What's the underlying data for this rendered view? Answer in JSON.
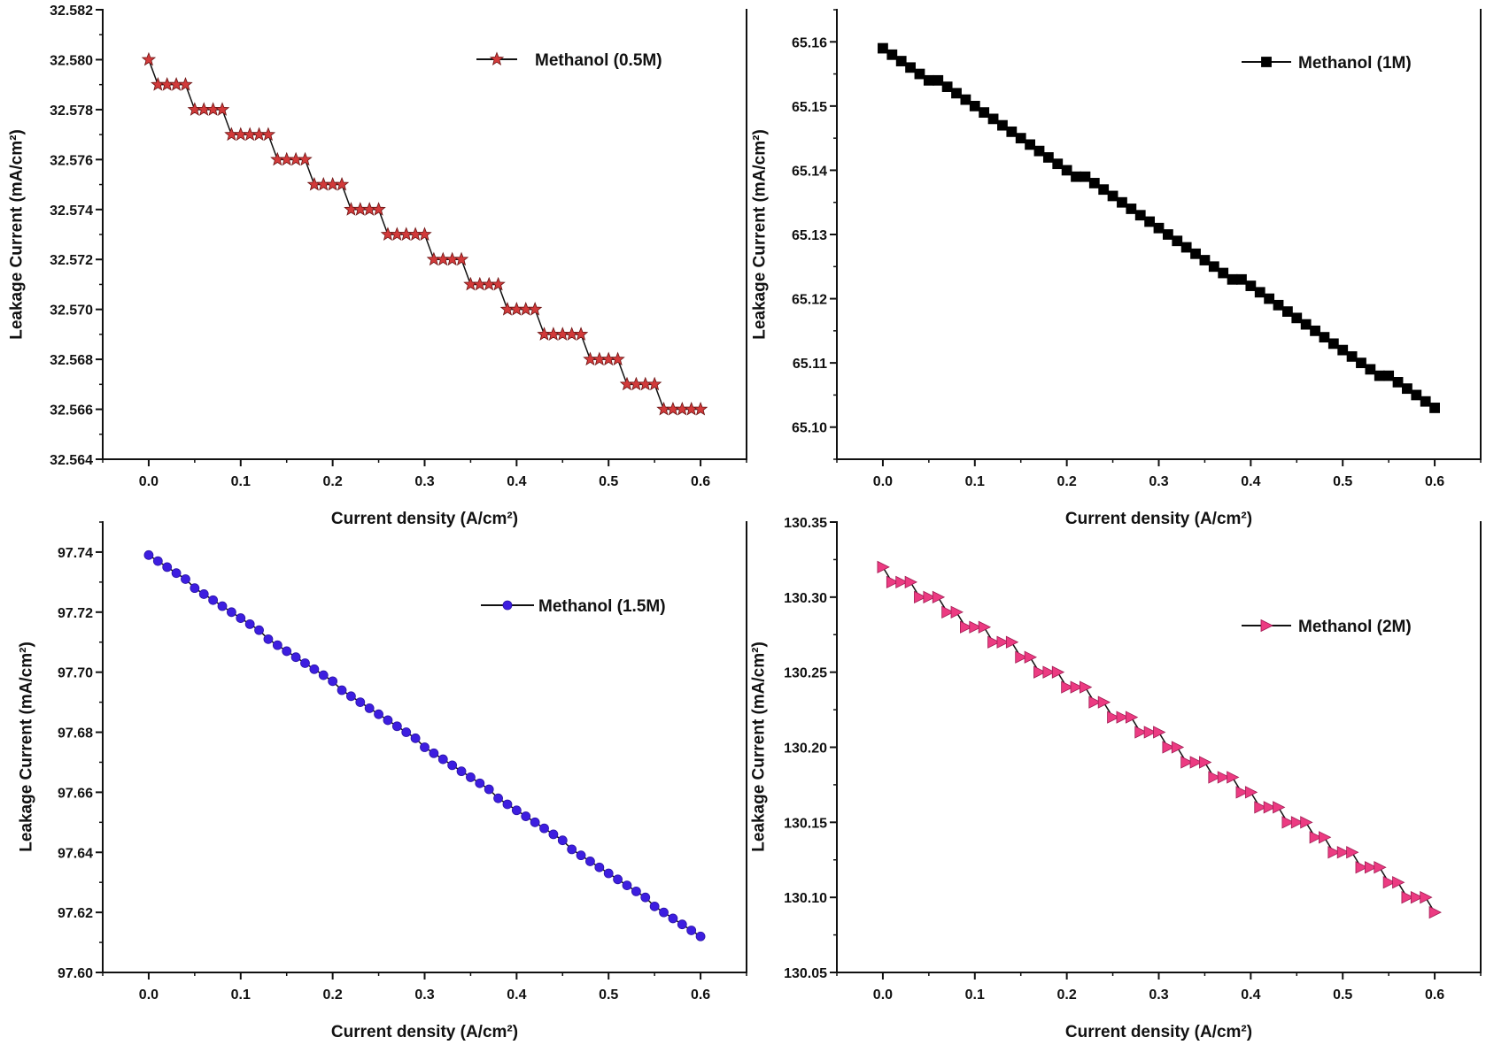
{
  "chart_data": [
    {
      "type": "line",
      "title": "",
      "xlabel": "Current density (A/cm²)",
      "ylabel": "Leakage Current (mA/cm²)",
      "xlim": [
        -0.05,
        0.65
      ],
      "ylim": [
        32.564,
        32.582
      ],
      "xticks": [
        "0.0",
        "0.1",
        "0.2",
        "0.3",
        "0.4",
        "0.5",
        "0.6"
      ],
      "yticks": [
        "32.564",
        "32.566",
        "32.568",
        "32.570",
        "32.572",
        "32.574",
        "32.576",
        "32.578",
        "32.580",
        "32.582"
      ],
      "grid": false,
      "legend_position": "top-right",
      "x": [
        0,
        0.01,
        0.02,
        0.03,
        0.04,
        0.05,
        0.06,
        0.07,
        0.08,
        0.09,
        0.1,
        0.11,
        0.12,
        0.13,
        0.14,
        0.15,
        0.16,
        0.17,
        0.18,
        0.19,
        0.2,
        0.21,
        0.22,
        0.23,
        0.24,
        0.25,
        0.26,
        0.27,
        0.28,
        0.29,
        0.3,
        0.31,
        0.32,
        0.33,
        0.34,
        0.35,
        0.36,
        0.37,
        0.38,
        0.39,
        0.4,
        0.41,
        0.42,
        0.43,
        0.44,
        0.45,
        0.46,
        0.47,
        0.48,
        0.49,
        0.5,
        0.51,
        0.52,
        0.53,
        0.54,
        0.55,
        0.56,
        0.57,
        0.58,
        0.59,
        0.6
      ],
      "series": [
        {
          "name": "Methanol (0.5M)",
          "marker": "star",
          "color": "#d23a3a",
          "edge_color": "#6b1414",
          "line_color": "#111111",
          "values": [
            32.58,
            32.579,
            32.579,
            32.579,
            32.579,
            32.578,
            32.578,
            32.578,
            32.578,
            32.577,
            32.577,
            32.577,
            32.577,
            32.577,
            32.576,
            32.576,
            32.576,
            32.576,
            32.575,
            32.575,
            32.575,
            32.575,
            32.574,
            32.574,
            32.574,
            32.574,
            32.573,
            32.573,
            32.573,
            32.573,
            32.573,
            32.572,
            32.572,
            32.572,
            32.572,
            32.571,
            32.571,
            32.571,
            32.571,
            32.57,
            32.57,
            32.57,
            32.57,
            32.569,
            32.569,
            32.569,
            32.569,
            32.569,
            32.568,
            32.568,
            32.568,
            32.568,
            32.567,
            32.567,
            32.567,
            32.567,
            32.566,
            32.566,
            32.566,
            32.566,
            32.566
          ]
        }
      ]
    },
    {
      "type": "line",
      "title": "",
      "xlabel": "Current density (A/cm²)",
      "ylabel": "Leakage Current (mA/cm²)",
      "xlim": [
        -0.05,
        0.65
      ],
      "ylim": [
        65.095,
        65.165
      ],
      "xticks": [
        "0.0",
        "0.1",
        "0.2",
        "0.3",
        "0.4",
        "0.5",
        "0.6"
      ],
      "yticks": [
        "65.10",
        "65.11",
        "65.12",
        "65.13",
        "65.14",
        "65.15",
        "65.16"
      ],
      "grid": false,
      "legend_position": "top-right",
      "x": [
        0,
        0.01,
        0.02,
        0.03,
        0.04,
        0.05,
        0.06,
        0.07,
        0.08,
        0.09,
        0.1,
        0.11,
        0.12,
        0.13,
        0.14,
        0.15,
        0.16,
        0.17,
        0.18,
        0.19,
        0.2,
        0.21,
        0.22,
        0.23,
        0.24,
        0.25,
        0.26,
        0.27,
        0.28,
        0.29,
        0.3,
        0.31,
        0.32,
        0.33,
        0.34,
        0.35,
        0.36,
        0.37,
        0.38,
        0.39,
        0.4,
        0.41,
        0.42,
        0.43,
        0.44,
        0.45,
        0.46,
        0.47,
        0.48,
        0.49,
        0.5,
        0.51,
        0.52,
        0.53,
        0.54,
        0.55,
        0.56,
        0.57,
        0.58,
        0.59,
        0.6
      ],
      "series": [
        {
          "name": "Methanol (1M)",
          "marker": "square",
          "color": "#000000",
          "edge_color": "#000000",
          "line_color": "#111111",
          "values": [
            65.159,
            65.158,
            65.157,
            65.156,
            65.155,
            65.154,
            65.154,
            65.153,
            65.152,
            65.151,
            65.15,
            65.149,
            65.148,
            65.147,
            65.146,
            65.145,
            65.144,
            65.143,
            65.142,
            65.141,
            65.14,
            65.139,
            65.139,
            65.138,
            65.137,
            65.136,
            65.135,
            65.134,
            65.133,
            65.132,
            65.131,
            65.13,
            65.129,
            65.128,
            65.127,
            65.126,
            65.125,
            65.124,
            65.123,
            65.123,
            65.122,
            65.121,
            65.12,
            65.119,
            65.118,
            65.117,
            65.116,
            65.115,
            65.114,
            65.113,
            65.112,
            65.111,
            65.11,
            65.109,
            65.108,
            65.108,
            65.107,
            65.106,
            65.105,
            65.104,
            65.103
          ]
        }
      ]
    },
    {
      "type": "line",
      "title": "",
      "xlabel": "Current density (A/cm²)",
      "ylabel": "Leakage Current (mA/cm²)",
      "xlim": [
        -0.05,
        0.65
      ],
      "ylim": [
        97.6,
        97.75
      ],
      "xticks": [
        "0.0",
        "0.1",
        "0.2",
        "0.3",
        "0.4",
        "0.5",
        "0.6"
      ],
      "yticks": [
        "97.60",
        "97.62",
        "97.64",
        "97.66",
        "97.68",
        "97.70",
        "97.72",
        "97.74"
      ],
      "grid": false,
      "legend_position": "top-right",
      "x": [
        0,
        0.01,
        0.02,
        0.03,
        0.04,
        0.05,
        0.06,
        0.07,
        0.08,
        0.09,
        0.1,
        0.11,
        0.12,
        0.13,
        0.14,
        0.15,
        0.16,
        0.17,
        0.18,
        0.19,
        0.2,
        0.21,
        0.22,
        0.23,
        0.24,
        0.25,
        0.26,
        0.27,
        0.28,
        0.29,
        0.3,
        0.31,
        0.32,
        0.33,
        0.34,
        0.35,
        0.36,
        0.37,
        0.38,
        0.39,
        0.4,
        0.41,
        0.42,
        0.43,
        0.44,
        0.45,
        0.46,
        0.47,
        0.48,
        0.49,
        0.5,
        0.51,
        0.52,
        0.53,
        0.54,
        0.55,
        0.56,
        0.57,
        0.58,
        0.59,
        0.6
      ],
      "series": [
        {
          "name": "Methanol (1.5M)",
          "marker": "circle",
          "color": "#3d1ee0",
          "edge_color": "#2a12a8",
          "line_color": "#111111",
          "values": [
            97.739,
            97.737,
            97.735,
            97.733,
            97.731,
            97.728,
            97.726,
            97.724,
            97.722,
            97.72,
            97.718,
            97.716,
            97.714,
            97.711,
            97.709,
            97.707,
            97.705,
            97.703,
            97.701,
            97.699,
            97.697,
            97.694,
            97.692,
            97.69,
            97.688,
            97.686,
            97.684,
            97.682,
            97.68,
            97.678,
            97.675,
            97.673,
            97.671,
            97.669,
            97.667,
            97.665,
            97.663,
            97.661,
            97.658,
            97.656,
            97.654,
            97.652,
            97.65,
            97.648,
            97.646,
            97.644,
            97.641,
            97.639,
            97.637,
            97.635,
            97.633,
            97.631,
            97.629,
            97.627,
            97.625,
            97.622,
            97.62,
            97.618,
            97.616,
            97.614,
            97.612
          ]
        }
      ]
    },
    {
      "type": "line",
      "title": "",
      "xlabel": "Current density (A/cm²)",
      "ylabel": "Leakage Current (mA/cm²)",
      "xlim": [
        -0.05,
        0.65
      ],
      "ylim": [
        130.05,
        130.35
      ],
      "xticks": [
        "0.0",
        "0.1",
        "0.2",
        "0.3",
        "0.4",
        "0.5",
        "0.6"
      ],
      "yticks": [
        "130.05",
        "130.10",
        "130.15",
        "130.20",
        "130.25",
        "130.30",
        "130.35"
      ],
      "grid": false,
      "legend_position": "top-right",
      "x": [
        0,
        0.01,
        0.02,
        0.03,
        0.04,
        0.05,
        0.06,
        0.07,
        0.08,
        0.09,
        0.1,
        0.11,
        0.12,
        0.13,
        0.14,
        0.15,
        0.16,
        0.17,
        0.18,
        0.19,
        0.2,
        0.21,
        0.22,
        0.23,
        0.24,
        0.25,
        0.26,
        0.27,
        0.28,
        0.29,
        0.3,
        0.31,
        0.32,
        0.33,
        0.34,
        0.35,
        0.36,
        0.37,
        0.38,
        0.39,
        0.4,
        0.41,
        0.42,
        0.43,
        0.44,
        0.45,
        0.46,
        0.47,
        0.48,
        0.49,
        0.5,
        0.51,
        0.52,
        0.53,
        0.54,
        0.55,
        0.56,
        0.57,
        0.58,
        0.59,
        0.6
      ],
      "series": [
        {
          "name": "Methanol (2M)",
          "marker": "triangle-right",
          "color": "#ec3b82",
          "edge_color": "#a01a52",
          "line_color": "#111111",
          "values": [
            130.32,
            130.31,
            130.31,
            130.31,
            130.3,
            130.3,
            130.3,
            130.29,
            130.29,
            130.28,
            130.28,
            130.28,
            130.27,
            130.27,
            130.27,
            130.26,
            130.26,
            130.25,
            130.25,
            130.25,
            130.24,
            130.24,
            130.24,
            130.23,
            130.23,
            130.22,
            130.22,
            130.22,
            130.21,
            130.21,
            130.21,
            130.2,
            130.2,
            130.19,
            130.19,
            130.19,
            130.18,
            130.18,
            130.18,
            130.17,
            130.17,
            130.16,
            130.16,
            130.16,
            130.15,
            130.15,
            130.15,
            130.14,
            130.14,
            130.13,
            130.13,
            130.13,
            130.12,
            130.12,
            130.12,
            130.11,
            130.11,
            130.1,
            130.1,
            130.1,
            130.09
          ]
        }
      ]
    }
  ]
}
